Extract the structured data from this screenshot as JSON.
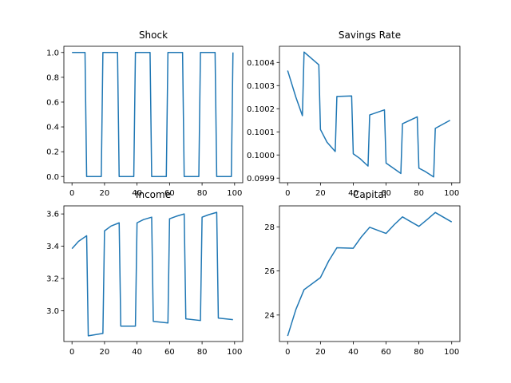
{
  "chart_data": [
    {
      "type": "line",
      "title": "Shock",
      "xlabel": "",
      "ylabel": "",
      "xlim": [
        -5,
        105
      ],
      "ylim": [
        -0.05,
        1.05
      ],
      "xticks": [
        0,
        20,
        40,
        60,
        80,
        100
      ],
      "xtick_labels": [
        "0",
        "20",
        "40",
        "60",
        "80",
        "100"
      ],
      "yticks": [
        0.0,
        0.2,
        0.4,
        0.6,
        0.8,
        1.0
      ],
      "ytick_labels": [
        "0.0",
        "0.2",
        "0.4",
        "0.6",
        "0.8",
        "1.0"
      ],
      "grid": false,
      "color": "#1f77b4",
      "x": [
        0,
        8,
        9,
        18,
        19,
        28,
        29,
        38,
        39,
        48,
        49,
        58,
        59,
        68,
        69,
        78,
        79,
        88,
        89,
        98,
        99
      ],
      "y": [
        1,
        1,
        0,
        0,
        1,
        1,
        0,
        0,
        1,
        1,
        0,
        0,
        1,
        1,
        0,
        0,
        1,
        1,
        0,
        0,
        1
      ]
    },
    {
      "type": "line",
      "title": "Savings Rate",
      "xlabel": "",
      "ylabel": "",
      "xlim": [
        -5,
        105
      ],
      "ylim": [
        0.09988,
        0.10047
      ],
      "xticks": [
        0,
        20,
        40,
        60,
        80,
        100
      ],
      "xtick_labels": [
        "0",
        "20",
        "40",
        "60",
        "80",
        "100"
      ],
      "yticks": [
        0.0999,
        0.1,
        0.1001,
        0.1002,
        0.1003,
        0.1004
      ],
      "ytick_labels": [
        "0.0999",
        "0.1000",
        "0.1001",
        "0.1002",
        "0.1003",
        "0.1004"
      ],
      "grid": false,
      "color": "#1f77b4",
      "x": [
        0,
        5,
        9,
        10,
        19,
        20,
        24,
        29,
        30,
        39,
        40,
        44,
        49,
        50,
        59,
        60,
        64,
        69,
        70,
        79,
        80,
        84,
        89,
        90,
        99
      ],
      "y": [
        0.100365,
        0.10025,
        0.10017,
        0.100445,
        0.10039,
        0.10011,
        0.100055,
        0.100015,
        0.100253,
        0.100255,
        0.100005,
        0.099985,
        0.099952,
        0.100173,
        0.100195,
        0.099965,
        0.099945,
        0.09992,
        0.100135,
        0.100165,
        0.099943,
        0.099928,
        0.099905,
        0.100115,
        0.10015
      ]
    },
    {
      "type": "line",
      "title": "Income",
      "xlabel": "",
      "ylabel": "",
      "xlim": [
        -5,
        105
      ],
      "ylim": [
        2.81,
        3.65
      ],
      "xticks": [
        0,
        20,
        40,
        60,
        80,
        100
      ],
      "xtick_labels": [
        "0",
        "20",
        "40",
        "60",
        "80",
        "100"
      ],
      "yticks": [
        3.0,
        3.2,
        3.4,
        3.6
      ],
      "ytick_labels": [
        "3.0",
        "3.2",
        "3.4",
        "3.6"
      ],
      "grid": false,
      "color": "#1f77b4",
      "x": [
        0,
        4,
        9,
        10,
        19,
        20,
        24,
        29,
        30,
        39,
        40,
        44,
        49,
        50,
        59,
        60,
        64,
        69,
        70,
        79,
        80,
        84,
        89,
        90,
        99
      ],
      "y": [
        3.385,
        3.43,
        3.465,
        2.845,
        2.86,
        3.495,
        3.525,
        3.545,
        2.905,
        2.905,
        3.545,
        3.565,
        3.58,
        2.935,
        2.925,
        3.57,
        3.585,
        3.6,
        2.95,
        2.94,
        3.58,
        3.595,
        3.61,
        2.955,
        2.945
      ]
    },
    {
      "type": "line",
      "title": "Capital",
      "xlabel": "",
      "ylabel": "",
      "xlim": [
        -5,
        105
      ],
      "ylim": [
        22.8,
        28.95
      ],
      "xticks": [
        0,
        20,
        40,
        60,
        80,
        100
      ],
      "xtick_labels": [
        "0",
        "20",
        "40",
        "60",
        "80",
        "100"
      ],
      "yticks": [
        24,
        26,
        28
      ],
      "ytick_labels": [
        "24",
        "26",
        "28"
      ],
      "grid": false,
      "color": "#1f77b4",
      "x": [
        0,
        5,
        10,
        20,
        25,
        30,
        40,
        45,
        50,
        60,
        65,
        70,
        80,
        85,
        90,
        100
      ],
      "y": [
        23.05,
        24.25,
        25.15,
        25.7,
        26.45,
        27.05,
        27.03,
        27.55,
        27.98,
        27.7,
        28.1,
        28.45,
        28.02,
        28.33,
        28.65,
        28.22
      ]
    }
  ]
}
